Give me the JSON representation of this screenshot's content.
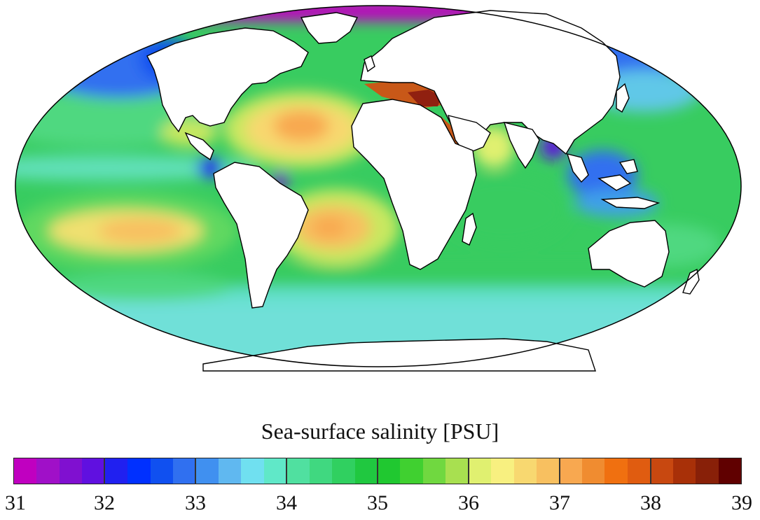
{
  "colorbar": {
    "title": "Sea-surface salinity [PSU]",
    "min": 31,
    "max": 39,
    "ticks": [
      "31",
      "32",
      "33",
      "34",
      "35",
      "36",
      "37",
      "38",
      "39"
    ],
    "colors": [
      "#c000c0",
      "#a010c8",
      "#8010d0",
      "#6010e0",
      "#2020f0",
      "#0030ff",
      "#1050f0",
      "#3070f0",
      "#4090f0",
      "#60b8f0",
      "#70e0f0",
      "#60e8c8",
      "#50e0a0",
      "#40d880",
      "#30d060",
      "#20c840",
      "#20c830",
      "#40d030",
      "#70d840",
      "#a8e050",
      "#e0f070",
      "#f8f080",
      "#f8d870",
      "#f8c060",
      "#f8a850",
      "#f08c30",
      "#f07010",
      "#e05c10",
      "#c84810",
      "#a83008",
      "#882008",
      "#600000"
    ]
  },
  "map": {
    "projection": "mollweide",
    "ocean_base_color": "#38cc60",
    "land_color": "#ffffff",
    "coast_color": "#000000"
  }
}
